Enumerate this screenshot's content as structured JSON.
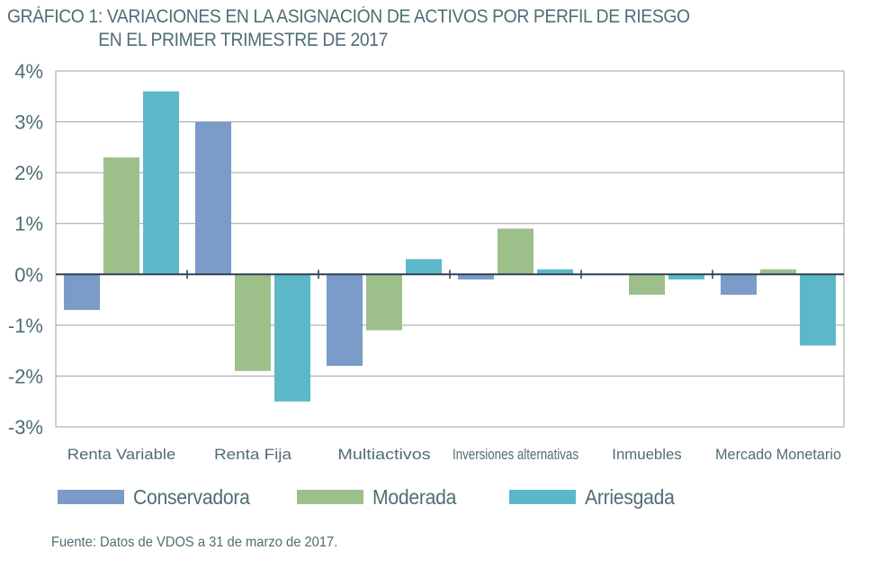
{
  "title": {
    "line1": "GRÁFICO 1: VARIACIONES EN LA ASIGNACIÓN DE ACTIVOS POR PERFIL DE RIESGO",
    "line2": "EN EL PRIMER TRIMESTRE DE 2017"
  },
  "source": "Fuente: Datos de VDOS a 31 de marzo de 2017.",
  "colors": {
    "Conservadora": "#7b9bc8",
    "Moderada": "#9dc08b",
    "Arriesgada": "#5cb8c9",
    "grid": "#9aa3a6",
    "axis": "#2e3e55",
    "text": "#4f6d74"
  },
  "chart_data": {
    "type": "bar",
    "title": "GRÁFICO 1: VARIACIONES EN LA ASIGNACIÓN DE ACTIVOS POR PERFIL DE RIESGO EN EL PRIMER TRIMESTRE DE 2017",
    "categories": [
      "Renta Variable",
      "Renta Fija",
      "Multiactivos",
      "Inversiones alternativas",
      "Inmuebles",
      "Mercado Monetario"
    ],
    "series": [
      {
        "name": "Conservadora",
        "values": [
          -0.7,
          3.0,
          -1.8,
          -0.1,
          0.0,
          -0.4
        ]
      },
      {
        "name": "Moderada",
        "values": [
          2.3,
          -1.9,
          -1.1,
          0.9,
          -0.4,
          0.1
        ]
      },
      {
        "name": "Arriesgada",
        "values": [
          3.6,
          -2.5,
          0.3,
          0.1,
          -0.1,
          -1.4
        ]
      }
    ],
    "ylim": [
      -3,
      4
    ],
    "yticks": [
      4,
      3,
      2,
      1,
      0,
      -1,
      -2,
      -3
    ],
    "ytick_labels": [
      "4%",
      "3%",
      "2%",
      "1%",
      "0%",
      "-1%",
      "-2%",
      "-3%"
    ],
    "xlabel": "",
    "ylabel": "",
    "grid": true,
    "legend": "bottom"
  }
}
